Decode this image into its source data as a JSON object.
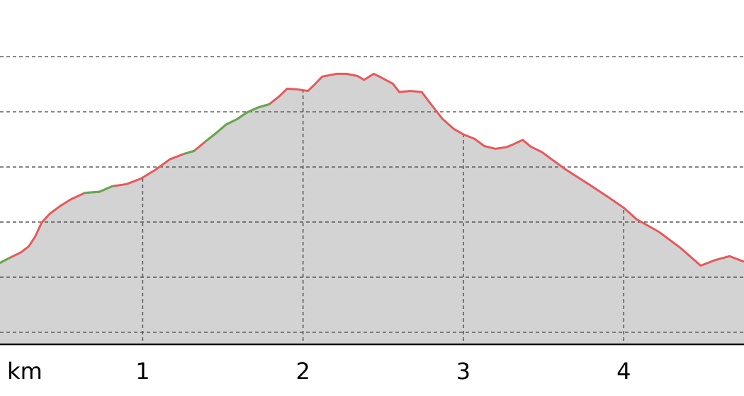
{
  "chart_data": {
    "type": "area",
    "x_label": "km",
    "x": [
      0.11,
      0.17,
      0.24,
      0.29,
      0.33,
      0.37,
      0.42,
      0.48,
      0.55,
      0.64,
      0.73,
      0.81,
      0.9,
      0.99,
      1.08,
      1.17,
      1.26,
      1.32,
      1.39,
      1.46,
      1.52,
      1.59,
      1.65,
      1.72,
      1.79,
      1.85,
      1.9,
      1.96,
      2.03,
      2.07,
      2.12,
      2.21,
      2.27,
      2.34,
      2.38,
      2.44,
      2.49,
      2.56,
      2.6,
      2.67,
      2.74,
      2.8,
      2.87,
      2.94,
      3.0,
      3.07,
      3.13,
      3.2,
      3.27,
      3.31,
      3.37,
      3.42,
      3.49,
      3.55,
      3.64,
      3.78,
      3.91,
      4.0,
      4.08,
      4.22,
      4.35,
      4.48,
      4.57,
      4.66,
      4.75
    ],
    "values": [
      1.26,
      1.35,
      1.45,
      1.56,
      1.74,
      1.99,
      2.15,
      2.28,
      2.41,
      2.53,
      2.55,
      2.65,
      2.69,
      2.79,
      2.95,
      3.14,
      3.24,
      3.29,
      3.46,
      3.62,
      3.77,
      3.87,
      3.99,
      4.08,
      4.14,
      4.28,
      4.42,
      4.41,
      4.38,
      4.49,
      4.64,
      4.69,
      4.69,
      4.65,
      4.58,
      4.69,
      4.62,
      4.51,
      4.36,
      4.38,
      4.36,
      4.13,
      3.87,
      3.69,
      3.59,
      3.51,
      3.38,
      3.33,
      3.36,
      3.41,
      3.49,
      3.37,
      3.27,
      3.14,
      2.95,
      2.69,
      2.44,
      2.26,
      2.05,
      1.82,
      1.54,
      1.21,
      1.31,
      1.38,
      1.28
    ],
    "color": "#e8585a",
    "fill_color": "#d3d3d3",
    "climb_color": "#62a84e",
    "climb_segments": [
      0,
      9,
      10,
      16,
      18,
      19,
      20,
      21,
      22,
      23
    ],
    "xlim": [
      0.11,
      4.75
    ],
    "ylim": [
      -0.22,
      6.03
    ],
    "xticks": [
      1,
      2,
      3,
      4
    ],
    "yticks": [
      0,
      1,
      2,
      3,
      4,
      5
    ],
    "ytick_labels": false,
    "grid": true
  }
}
